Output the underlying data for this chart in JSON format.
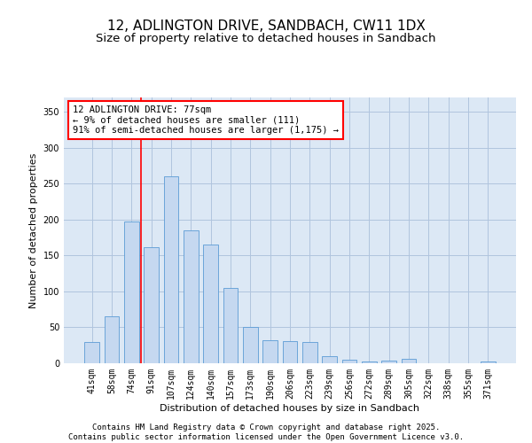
{
  "title": "12, ADLINGTON DRIVE, SANDBACH, CW11 1DX",
  "subtitle": "Size of property relative to detached houses in Sandbach",
  "xlabel": "Distribution of detached houses by size in Sandbach",
  "ylabel": "Number of detached properties",
  "categories": [
    "41sqm",
    "58sqm",
    "74sqm",
    "91sqm",
    "107sqm",
    "124sqm",
    "140sqm",
    "157sqm",
    "173sqm",
    "190sqm",
    "206sqm",
    "223sqm",
    "239sqm",
    "256sqm",
    "272sqm",
    "289sqm",
    "305sqm",
    "322sqm",
    "338sqm",
    "355sqm",
    "371sqm"
  ],
  "values": [
    30,
    65,
    197,
    162,
    260,
    185,
    165,
    105,
    50,
    32,
    31,
    30,
    10,
    5,
    3,
    4,
    6,
    0,
    0,
    0,
    2
  ],
  "bar_color": "#c5d8f0",
  "bar_edge_color": "#5b9bd5",
  "vline_x": 2.5,
  "vline_color": "red",
  "annotation_text": "12 ADLINGTON DRIVE: 77sqm\n← 9% of detached houses are smaller (111)\n91% of semi-detached houses are larger (1,175) →",
  "annotation_box_color": "white",
  "annotation_box_edge_color": "red",
  "ylim": [
    0,
    370
  ],
  "yticks": [
    0,
    50,
    100,
    150,
    200,
    250,
    300,
    350
  ],
  "grid_color": "#b0c4de",
  "bg_color": "#dce8f5",
  "footer": "Contains HM Land Registry data © Crown copyright and database right 2025.\nContains public sector information licensed under the Open Government Licence v3.0.",
  "title_fontsize": 11,
  "subtitle_fontsize": 9.5,
  "label_fontsize": 8,
  "tick_fontsize": 7,
  "annotation_fontsize": 7.5,
  "footer_fontsize": 6.5
}
